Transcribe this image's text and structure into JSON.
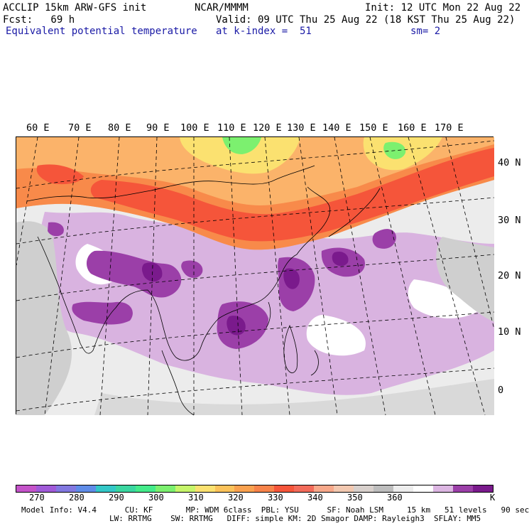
{
  "header": {
    "model_title": "ACCLIP 15km ARW-GFS init",
    "center": "NCAR/MMMM",
    "init": "Init: 12 UTC Mon 22 Aug 22",
    "forecast": "Fcst:   69 h",
    "valid": "Valid: 09 UTC Thu 25 Aug 22 (18 KST Thu 25 Aug 22)",
    "field": "Equivalent potential temperature",
    "level": "at k-index =  51",
    "smoothing": "sm= 2"
  },
  "map": {
    "lon_labels": [
      "60 E",
      "70 E",
      "80 E",
      "90 E",
      "100 E",
      "110 E",
      "120 E",
      "130 E",
      "140 E",
      "150 E",
      "160 E",
      "170 E"
    ],
    "lat_labels": [
      "40 N",
      "30 N",
      "20 N",
      "10 N",
      "0"
    ],
    "colors": {
      "orange_hot": "#f5553a",
      "orange": "#f88a4a",
      "light_orange": "#fbb36a",
      "yellow": "#fbe170",
      "green": "#7cf06f",
      "lavender": "#d9b3e0",
      "purple": "#9b3fa8",
      "dark_purple": "#7a1a8c",
      "light_gray": "#ececec",
      "gray": "#cfcfcf"
    }
  },
  "colorbar": {
    "colors": [
      "#c453c9",
      "#a05ad8",
      "#8278e0",
      "#5f8ce8",
      "#33c7c7",
      "#3ad6a0",
      "#44eb8a",
      "#7cf06f",
      "#c6f56a",
      "#fbe170",
      "#fbc25a",
      "#f9a14f",
      "#f7834a",
      "#f5553a",
      "#f26b5a",
      "#f7a88a",
      "#f2c8b0",
      "#d8d0cc",
      "#bdbdbd",
      "#ededed",
      "#ffffff",
      "#dcb6e2",
      "#9b3fa8",
      "#7a1a8c"
    ],
    "tick_labels": [
      "270",
      "280",
      "290",
      "300",
      "310",
      "320",
      "330",
      "340",
      "350",
      "360"
    ],
    "unit": "K"
  },
  "footer": {
    "line1": "Model Info: V4.4      CU: KF       MP: WDM 6class  PBL: YSU      SF: Noah LSM     15 km   51 levels   90 sec",
    "line2": "LW: RRTMG    SW: RRTMG   DIFF: simple KM: 2D Smagor DAMP: Rayleigh3  SFLAY: MM5"
  }
}
